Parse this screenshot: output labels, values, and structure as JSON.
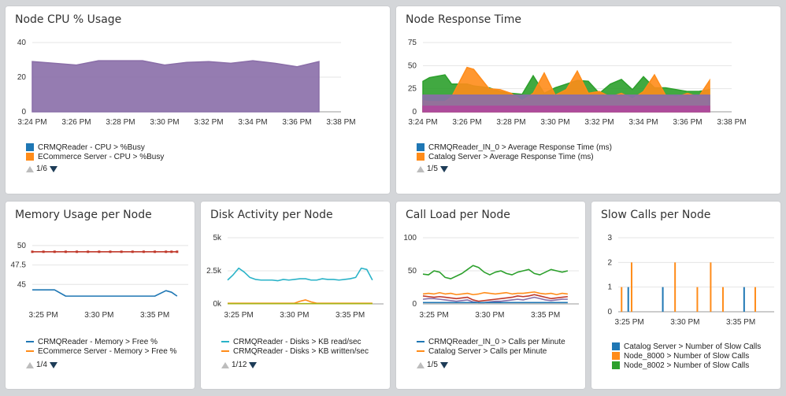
{
  "colors": {
    "blue": "#1f77b4",
    "orange": "#ff8c1a",
    "green": "#2ca02c",
    "purple": "#8a6ea8",
    "red": "#c0392b",
    "teal": "#2ab3c8",
    "olive": "#a7b317",
    "pager_down": "#1d3c57",
    "pager_up": "#bdbdbd"
  },
  "panels": {
    "cpu": {
      "title": "Node CPU % Usage",
      "legend": [
        "CRMQReader - CPU > %Busy",
        "ECommerce Server - CPU > %Busy"
      ],
      "pager": "1/6"
    },
    "response": {
      "title": "Node Response Time",
      "legend": [
        "CRMQReader_IN_0 > Average Response Time (ms)",
        "Catalog Server > Average Response Time (ms)"
      ],
      "pager": "1/5"
    },
    "memory": {
      "title": "Memory Usage per Node",
      "legend": [
        "CRMQReader - Memory > Free %",
        "ECommerce Server - Memory > Free %"
      ],
      "pager": "1/4"
    },
    "disk": {
      "title": "Disk Activity per Node",
      "legend": [
        "CRMQReader - Disks > KB read/sec",
        "CRMQReader - Disks > KB written/sec"
      ],
      "pager": "1/12"
    },
    "calls": {
      "title": "Call Load per Node",
      "legend": [
        "CRMQReader_IN_0 > Calls per Minute",
        "Catalog Server > Calls per Minute"
      ],
      "pager": "1/5"
    },
    "slow": {
      "title": "Slow Calls per Node",
      "legend": [
        "Catalog Server > Number of Slow Calls",
        "Node_8000 > Number of Slow Calls",
        "Node_8002 > Number of Slow Calls"
      ]
    }
  },
  "chart_data": [
    {
      "id": "cpu",
      "type": "area",
      "x": [
        0,
        1,
        2,
        3,
        4,
        5,
        6,
        7,
        8,
        9,
        10,
        11,
        12,
        13
      ],
      "xticks": {
        "values": [
          0,
          2,
          4,
          6,
          8,
          10,
          12,
          14
        ],
        "labels": [
          "3:24 PM",
          "3:26 PM",
          "3:28 PM",
          "3:30 PM",
          "3:32 PM",
          "3:34 PM",
          "3:36 PM",
          "3:38 PM"
        ]
      },
      "xlim": [
        0,
        14
      ],
      "ylim": [
        0,
        40
      ],
      "yticks": [
        0,
        20,
        40
      ],
      "series": [
        {
          "values": [
            29,
            28,
            27,
            29.5,
            29.5,
            29.5,
            27,
            28.5,
            29,
            28,
            29.5,
            28,
            26,
            29
          ],
          "color": "#8a6ea8"
        }
      ]
    },
    {
      "id": "response",
      "type": "area",
      "x": [
        0,
        0.3,
        1,
        1.3,
        2,
        2.3,
        3,
        3.5,
        4,
        4.5,
        5,
        5.5,
        6,
        6.5,
        7,
        7.5,
        8,
        8.5,
        9,
        9.5,
        10,
        10.5,
        11,
        11.5,
        12,
        12.5,
        13
      ],
      "xticks": {
        "values": [
          0,
          2,
          4,
          6,
          8,
          10,
          12,
          14
        ],
        "labels": [
          "3:24 PM",
          "3:26 PM",
          "3:28 PM",
          "3:30 PM",
          "3:32 PM",
          "3:34 PM",
          "3:36 PM",
          "3:38 PM"
        ]
      },
      "xlim": [
        0,
        14
      ],
      "ylim": [
        0,
        75
      ],
      "yticks": [
        0,
        25,
        50,
        75
      ],
      "series": [
        {
          "values": [
            33,
            37,
            40,
            30,
            30,
            28,
            26,
            22,
            20,
            19,
            39,
            20,
            26,
            30,
            34,
            33,
            20,
            30,
            35,
            24,
            38,
            26,
            26,
            24,
            22,
            22,
            24
          ],
          "color": "#2ca02c"
        },
        {
          "values": [
            12,
            11,
            11,
            16,
            48,
            46,
            25,
            24,
            20,
            12,
            20,
            42,
            18,
            24,
            44,
            20,
            22,
            16,
            20,
            14,
            22,
            40,
            18,
            16,
            20,
            16,
            34
          ],
          "color": "#ff8c1a"
        },
        {
          "values": [
            18,
            18,
            18,
            18,
            18,
            18,
            18,
            18,
            18,
            18,
            18,
            18,
            18,
            18,
            18,
            18,
            18,
            18,
            18,
            18,
            18,
            18,
            18,
            18,
            18,
            18,
            18
          ],
          "color": "#8a6ea8"
        },
        {
          "values": [
            6,
            6,
            6,
            6,
            6,
            6,
            6,
            6,
            6,
            6,
            6,
            6,
            6,
            6,
            6,
            6,
            6,
            6,
            6,
            6,
            6,
            6,
            6,
            6,
            6,
            6,
            6
          ],
          "color": "#b0489c"
        }
      ]
    },
    {
      "id": "memory",
      "type": "line",
      "x": [
        0,
        1,
        2,
        3,
        4,
        5,
        6,
        7,
        8,
        9,
        10,
        11,
        12,
        12.5,
        13
      ],
      "xticks": {
        "values": [
          1,
          6,
          11
        ],
        "labels": [
          "3:25 PM",
          "3:30 PM",
          "3:35 PM"
        ]
      },
      "xlim": [
        0,
        14
      ],
      "ylim": [
        42.5,
        51
      ],
      "yticks": {
        "values": [
          45,
          47.5,
          50
        ],
        "labels": [
          "45",
          "47.5",
          "50"
        ]
      },
      "series": [
        {
          "values": [
            49.2,
            49.2,
            49.2,
            49.2,
            49.2,
            49.2,
            49.2,
            49.2,
            49.2,
            49.2,
            49.2,
            49.2,
            49.2,
            49.2,
            49.2
          ],
          "color": "#c0392b",
          "markers": true
        },
        {
          "values": [
            44.3,
            44.3,
            44.3,
            43.5,
            43.5,
            43.5,
            43.5,
            43.5,
            43.5,
            43.5,
            43.5,
            43.5,
            44.2,
            44.0,
            43.5
          ],
          "color": "#1f77b4"
        }
      ]
    },
    {
      "id": "disk",
      "type": "line",
      "x": [
        0,
        0.5,
        1,
        1.5,
        2,
        2.5,
        3,
        3.5,
        4,
        4.5,
        5,
        5.5,
        6,
        6.5,
        7,
        7.5,
        8,
        8.5,
        9,
        9.5,
        10,
        10.5,
        11,
        11.5,
        12,
        12.5,
        13
      ],
      "xticks": {
        "values": [
          1,
          6,
          11
        ],
        "labels": [
          "3:25 PM",
          "3:30 PM",
          "3:35 PM"
        ]
      },
      "xlim": [
        0,
        14
      ],
      "ylim": [
        0,
        5000
      ],
      "yticks": {
        "values": [
          0,
          2500,
          5000
        ],
        "labels": [
          "0k",
          "2.5k",
          "5k"
        ]
      },
      "series": [
        {
          "values": [
            1800,
            2200,
            2700,
            2400,
            2000,
            1850,
            1800,
            1800,
            1800,
            1750,
            1850,
            1800,
            1850,
            1900,
            1900,
            1800,
            1800,
            1900,
            1850,
            1850,
            1800,
            1850,
            1900,
            2000,
            2700,
            2600,
            1800
          ],
          "color": "#2ab3c8"
        },
        {
          "values": [
            50,
            50,
            50,
            50,
            50,
            50,
            50,
            50,
            50,
            50,
            50,
            50,
            50,
            200,
            300,
            150,
            50,
            50,
            50,
            50,
            50,
            50,
            50,
            50,
            50,
            50,
            50
          ],
          "color": "#ff8c1a"
        },
        {
          "values": [
            20,
            20,
            20,
            20,
            20,
            20,
            20,
            20,
            20,
            20,
            20,
            20,
            20,
            20,
            20,
            20,
            20,
            20,
            20,
            20,
            20,
            20,
            20,
            20,
            20,
            20,
            20
          ],
          "color": "#a7b317"
        }
      ]
    },
    {
      "id": "calls",
      "type": "line",
      "x": [
        0,
        0.5,
        1,
        1.5,
        2,
        2.5,
        3,
        3.5,
        4,
        4.5,
        5,
        5.5,
        6,
        6.5,
        7,
        7.5,
        8,
        8.5,
        9,
        9.5,
        10,
        10.5,
        11,
        11.5,
        12,
        12.5,
        13
      ],
      "xticks": {
        "values": [
          1,
          6,
          11
        ],
        "labels": [
          "3:25 PM",
          "3:30 PM",
          "3:35 PM"
        ]
      },
      "xlim": [
        0,
        14
      ],
      "ylim": [
        0,
        100
      ],
      "yticks": [
        0,
        50,
        100
      ],
      "series": [
        {
          "values": [
            45,
            44,
            50,
            48,
            40,
            38,
            42,
            46,
            52,
            58,
            55,
            48,
            44,
            48,
            50,
            46,
            44,
            48,
            50,
            52,
            46,
            44,
            48,
            52,
            50,
            48,
            50
          ],
          "color": "#2ca02c"
        },
        {
          "values": [
            15,
            16,
            15,
            17,
            15,
            16,
            14,
            15,
            16,
            14,
            15,
            17,
            16,
            15,
            16,
            17,
            15,
            16,
            16,
            17,
            18,
            16,
            15,
            16,
            14,
            16,
            15
          ],
          "color": "#ff8c1a"
        },
        {
          "values": [
            12,
            11,
            10,
            11,
            10,
            9,
            8,
            9,
            10,
            6,
            4,
            5,
            6,
            7,
            8,
            9,
            10,
            12,
            11,
            12,
            14,
            12,
            10,
            8,
            9,
            10,
            11
          ],
          "color": "#c0392b"
        },
        {
          "values": [
            7,
            8,
            8,
            7,
            6,
            5,
            4,
            5,
            6,
            3,
            2,
            2,
            3,
            4,
            4,
            5,
            6,
            7,
            6,
            8,
            10,
            8,
            6,
            5,
            6,
            7,
            7
          ],
          "color": "#8a6ea8"
        },
        {
          "values": [
            2,
            2,
            2,
            2,
            2,
            2,
            2,
            2,
            2,
            2,
            2,
            2,
            2,
            2,
            2,
            2,
            2,
            2,
            2,
            2,
            2,
            2,
            2,
            2,
            2,
            2,
            2
          ],
          "color": "#1f77b4"
        }
      ]
    },
    {
      "id": "slow",
      "type": "bar",
      "xticks": {
        "values": [
          1,
          6,
          11
        ],
        "labels": [
          "3:25 PM",
          "3:30 PM",
          "3:35 PM"
        ]
      },
      "xlim": [
        0,
        14
      ],
      "ylim": [
        0,
        3
      ],
      "yticks": [
        0,
        1,
        2,
        3
      ],
      "bars": [
        {
          "x": 0.3,
          "value": 1,
          "color": "#ff8c1a"
        },
        {
          "x": 0.9,
          "value": 1,
          "color": "#1f77b4"
        },
        {
          "x": 1.2,
          "value": 2,
          "color": "#ff8c1a"
        },
        {
          "x": 4.0,
          "value": 1,
          "color": "#1f77b4"
        },
        {
          "x": 5.1,
          "value": 2,
          "color": "#ff8c1a"
        },
        {
          "x": 7.1,
          "value": 1,
          "color": "#ff8c1a"
        },
        {
          "x": 8.3,
          "value": 2,
          "color": "#ff8c1a"
        },
        {
          "x": 9.4,
          "value": 1,
          "color": "#ff8c1a"
        },
        {
          "x": 11.3,
          "value": 1,
          "color": "#1f77b4"
        },
        {
          "x": 12.3,
          "value": 1,
          "color": "#ff8c1a"
        }
      ]
    }
  ]
}
